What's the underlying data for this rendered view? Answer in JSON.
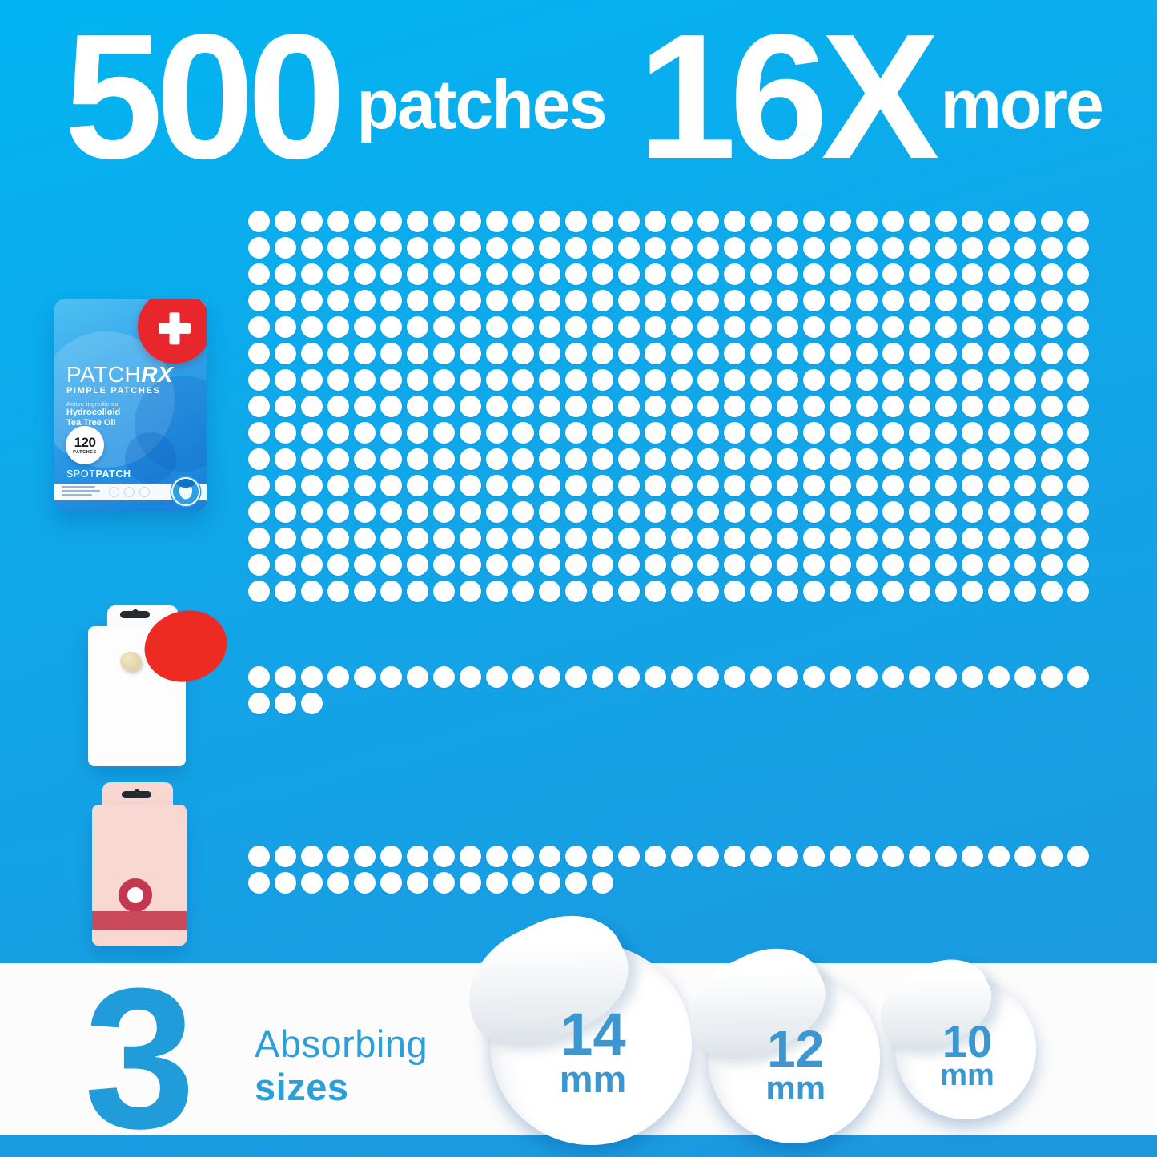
{
  "header": {
    "count": "500",
    "count_label": "patches",
    "multiplier": "16X",
    "multiplier_label": "more"
  },
  "product": {
    "brand_prefix": "PATCH",
    "brand_suffix": "RX",
    "subtitle": "PIMPLE PATCHES",
    "ingredients_label": "Active ingredients:",
    "ingredient_1": "Hydrocolloid",
    "ingredient_2": "Tea Tree Oil",
    "badge_count": "120",
    "badge_label": "PATCHES",
    "footer_brand_prefix": "SPOT",
    "footer_brand_suffix": "PATCH"
  },
  "dot_groups": {
    "main": {
      "rows": 15,
      "cols": 32,
      "count": 480
    },
    "competitor1": {
      "per_row": 32,
      "count": 35
    },
    "competitor2": {
      "per_row": 32,
      "count": 46
    }
  },
  "sizes_section": {
    "count": "3",
    "label_line1": "Absorbing",
    "label_line2": "sizes",
    "patches": [
      {
        "value": "14",
        "unit": "mm"
      },
      {
        "value": "12",
        "unit": "mm"
      },
      {
        "value": "10",
        "unit": "mm"
      }
    ]
  },
  "colors": {
    "background_blue": "#12a5e8",
    "dot_white": "#ffffff",
    "brand_red": "#e8262b",
    "pouch_blue": "#2f9fe9",
    "competitor_pink": "#f9d8d2",
    "pink_accent": "#c94a5b",
    "footer_text_blue": "#1f9cd9",
    "size_number_blue": "#3b97d1"
  }
}
